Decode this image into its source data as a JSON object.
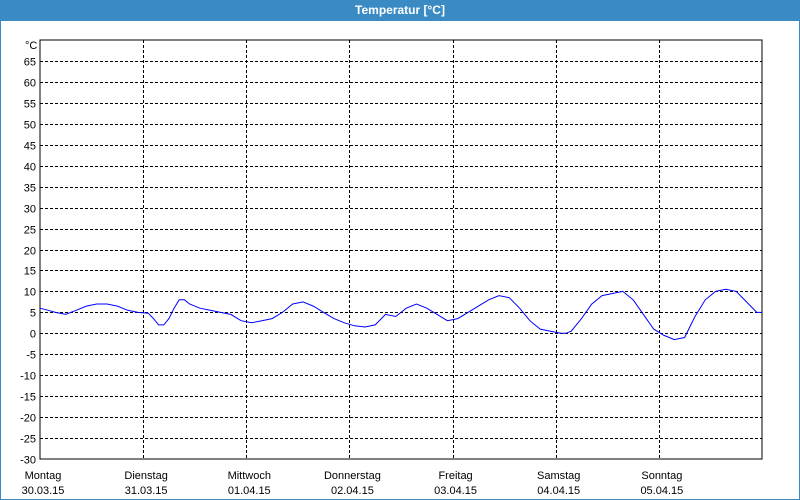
{
  "colors": {
    "titlebar": "#3a8bc4",
    "series": "#0000ff",
    "grid": "#000000"
  },
  "chart_data": {
    "type": "line",
    "title": "Temperatur [°C]",
    "y_unit_label": "°C",
    "ylim": [
      -30,
      70
    ],
    "yticks": [
      65,
      60,
      55,
      50,
      45,
      40,
      35,
      30,
      25,
      20,
      15,
      10,
      5,
      0,
      -5,
      -10,
      -15,
      -20,
      -25,
      -30
    ],
    "x_range_days": [
      0,
      7
    ],
    "x_ticks": [
      {
        "day": "Montag",
        "date": "30.03.15"
      },
      {
        "day": "Dienstag",
        "date": "31.03.15"
      },
      {
        "day": "Mittwoch",
        "date": "01.04.15"
      },
      {
        "day": "Donnerstag",
        "date": "02.04.15"
      },
      {
        "day": "Freitag",
        "date": "03.04.15"
      },
      {
        "day": "Samstag",
        "date": "04.04.15"
      },
      {
        "day": "Sonntag",
        "date": "05.04.15"
      }
    ],
    "grid": true,
    "series": [
      {
        "x": [
          0.0,
          0.08,
          0.15,
          0.25,
          0.35,
          0.45,
          0.55,
          0.65,
          0.75,
          0.85,
          0.95,
          1.05,
          1.1,
          1.15,
          1.2,
          1.25,
          1.3,
          1.35,
          1.4,
          1.45,
          1.55,
          1.65,
          1.75,
          1.85,
          1.95,
          2.05,
          2.15,
          2.25,
          2.35,
          2.45,
          2.55,
          2.65,
          2.75,
          2.85,
          2.95,
          3.05,
          3.15,
          3.25,
          3.35,
          3.45,
          3.55,
          3.65,
          3.75,
          3.85,
          3.95,
          4.05,
          4.15,
          4.25,
          4.35,
          4.45,
          4.55,
          4.65,
          4.75,
          4.85,
          4.95,
          5.05,
          5.1,
          5.15,
          5.25,
          5.35,
          5.45,
          5.55,
          5.65,
          5.75,
          5.85,
          5.95,
          6.05,
          6.1,
          6.15,
          6.25,
          6.35,
          6.45,
          6.55,
          6.65,
          6.75,
          6.85,
          6.95,
          7.0
        ],
        "values": [
          6.0,
          5.5,
          5.0,
          4.5,
          5.5,
          6.5,
          7.0,
          7.0,
          6.5,
          5.5,
          5.0,
          4.8,
          3.5,
          2.0,
          2.0,
          3.5,
          6.0,
          8.0,
          8.0,
          7.0,
          6.0,
          5.5,
          5.0,
          4.5,
          3.0,
          2.5,
          3.0,
          3.5,
          5.0,
          7.0,
          7.5,
          6.5,
          5.0,
          3.5,
          2.5,
          1.8,
          1.5,
          2.0,
          4.5,
          4.0,
          6.0,
          7.0,
          6.0,
          4.5,
          3.0,
          3.5,
          5.0,
          6.5,
          8.0,
          9.0,
          8.5,
          6.0,
          3.0,
          1.0,
          0.5,
          0.0,
          0.0,
          0.5,
          3.5,
          7.0,
          9.0,
          9.5,
          10.0,
          8.0,
          4.5,
          1.0,
          -0.5,
          -1.0,
          -1.5,
          -1.0,
          4.0,
          8.0,
          10.0,
          10.5,
          10.0,
          7.5,
          5.0,
          5.0
        ]
      }
    ]
  }
}
